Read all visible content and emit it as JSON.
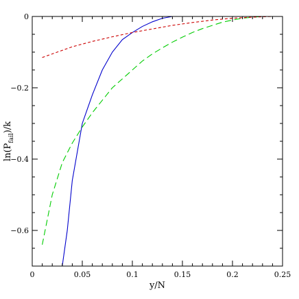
{
  "chart_data": {
    "type": "line",
    "title": "",
    "xlabel": "y/N",
    "ylabel_main": "ln(P",
    "ylabel_sub": "fail",
    "ylabel_tail": ")/k",
    "xlim": [
      0,
      0.25
    ],
    "ylim": [
      -0.7,
      0
    ],
    "grid": false,
    "legend": "none",
    "x_ticks": [
      0,
      0.05,
      0.1,
      0.15,
      0.2,
      0.25
    ],
    "x_tick_labels": [
      "0",
      "0.05",
      "0.1",
      "0.15",
      "0.2",
      "0.25"
    ],
    "x_minor_step": 0.01,
    "y_ticks": [
      0,
      -0.2,
      -0.4,
      -0.6
    ],
    "y_tick_labels": [
      "0",
      "−0.2",
      "−0.4",
      "−0.6"
    ],
    "y_minor_step": 0.05,
    "series": [
      {
        "color": "#0000cc",
        "dash": "solid",
        "points": [
          [
            0.03,
            -0.7
          ],
          [
            0.035,
            -0.6
          ],
          [
            0.04,
            -0.46
          ],
          [
            0.05,
            -0.3
          ],
          [
            0.06,
            -0.22
          ],
          [
            0.07,
            -0.15
          ],
          [
            0.08,
            -0.1
          ],
          [
            0.09,
            -0.065
          ],
          [
            0.1,
            -0.045
          ],
          [
            0.11,
            -0.028
          ],
          [
            0.12,
            -0.015
          ],
          [
            0.13,
            -0.005
          ],
          [
            0.14,
            0.0
          ],
          [
            0.15,
            0.0
          ],
          [
            0.2,
            0.0
          ],
          [
            0.24,
            0.0
          ]
        ]
      },
      {
        "color": "#00cc00",
        "dash": "long-dash",
        "points": [
          [
            0.01,
            -0.64
          ],
          [
            0.02,
            -0.5
          ],
          [
            0.03,
            -0.41
          ],
          [
            0.04,
            -0.355
          ],
          [
            0.05,
            -0.31
          ],
          [
            0.06,
            -0.27
          ],
          [
            0.07,
            -0.235
          ],
          [
            0.08,
            -0.2
          ],
          [
            0.09,
            -0.175
          ],
          [
            0.1,
            -0.15
          ],
          [
            0.11,
            -0.125
          ],
          [
            0.12,
            -0.105
          ],
          [
            0.13,
            -0.088
          ],
          [
            0.14,
            -0.072
          ],
          [
            0.15,
            -0.058
          ],
          [
            0.16,
            -0.045
          ],
          [
            0.17,
            -0.034
          ],
          [
            0.18,
            -0.025
          ],
          [
            0.19,
            -0.016
          ],
          [
            0.2,
            -0.01
          ],
          [
            0.21,
            -0.005
          ],
          [
            0.22,
            -0.002
          ],
          [
            0.23,
            0.0
          ],
          [
            0.24,
            0.0
          ]
        ]
      },
      {
        "color": "#cc0000",
        "dash": "short-dash",
        "points": [
          [
            0.01,
            -0.115
          ],
          [
            0.02,
            -0.105
          ],
          [
            0.04,
            -0.085
          ],
          [
            0.06,
            -0.07
          ],
          [
            0.08,
            -0.057
          ],
          [
            0.1,
            -0.045
          ],
          [
            0.12,
            -0.035
          ],
          [
            0.14,
            -0.025
          ],
          [
            0.16,
            -0.017
          ],
          [
            0.18,
            -0.01
          ],
          [
            0.2,
            -0.005
          ],
          [
            0.22,
            -0.002
          ],
          [
            0.24,
            0.0
          ]
        ]
      }
    ]
  }
}
